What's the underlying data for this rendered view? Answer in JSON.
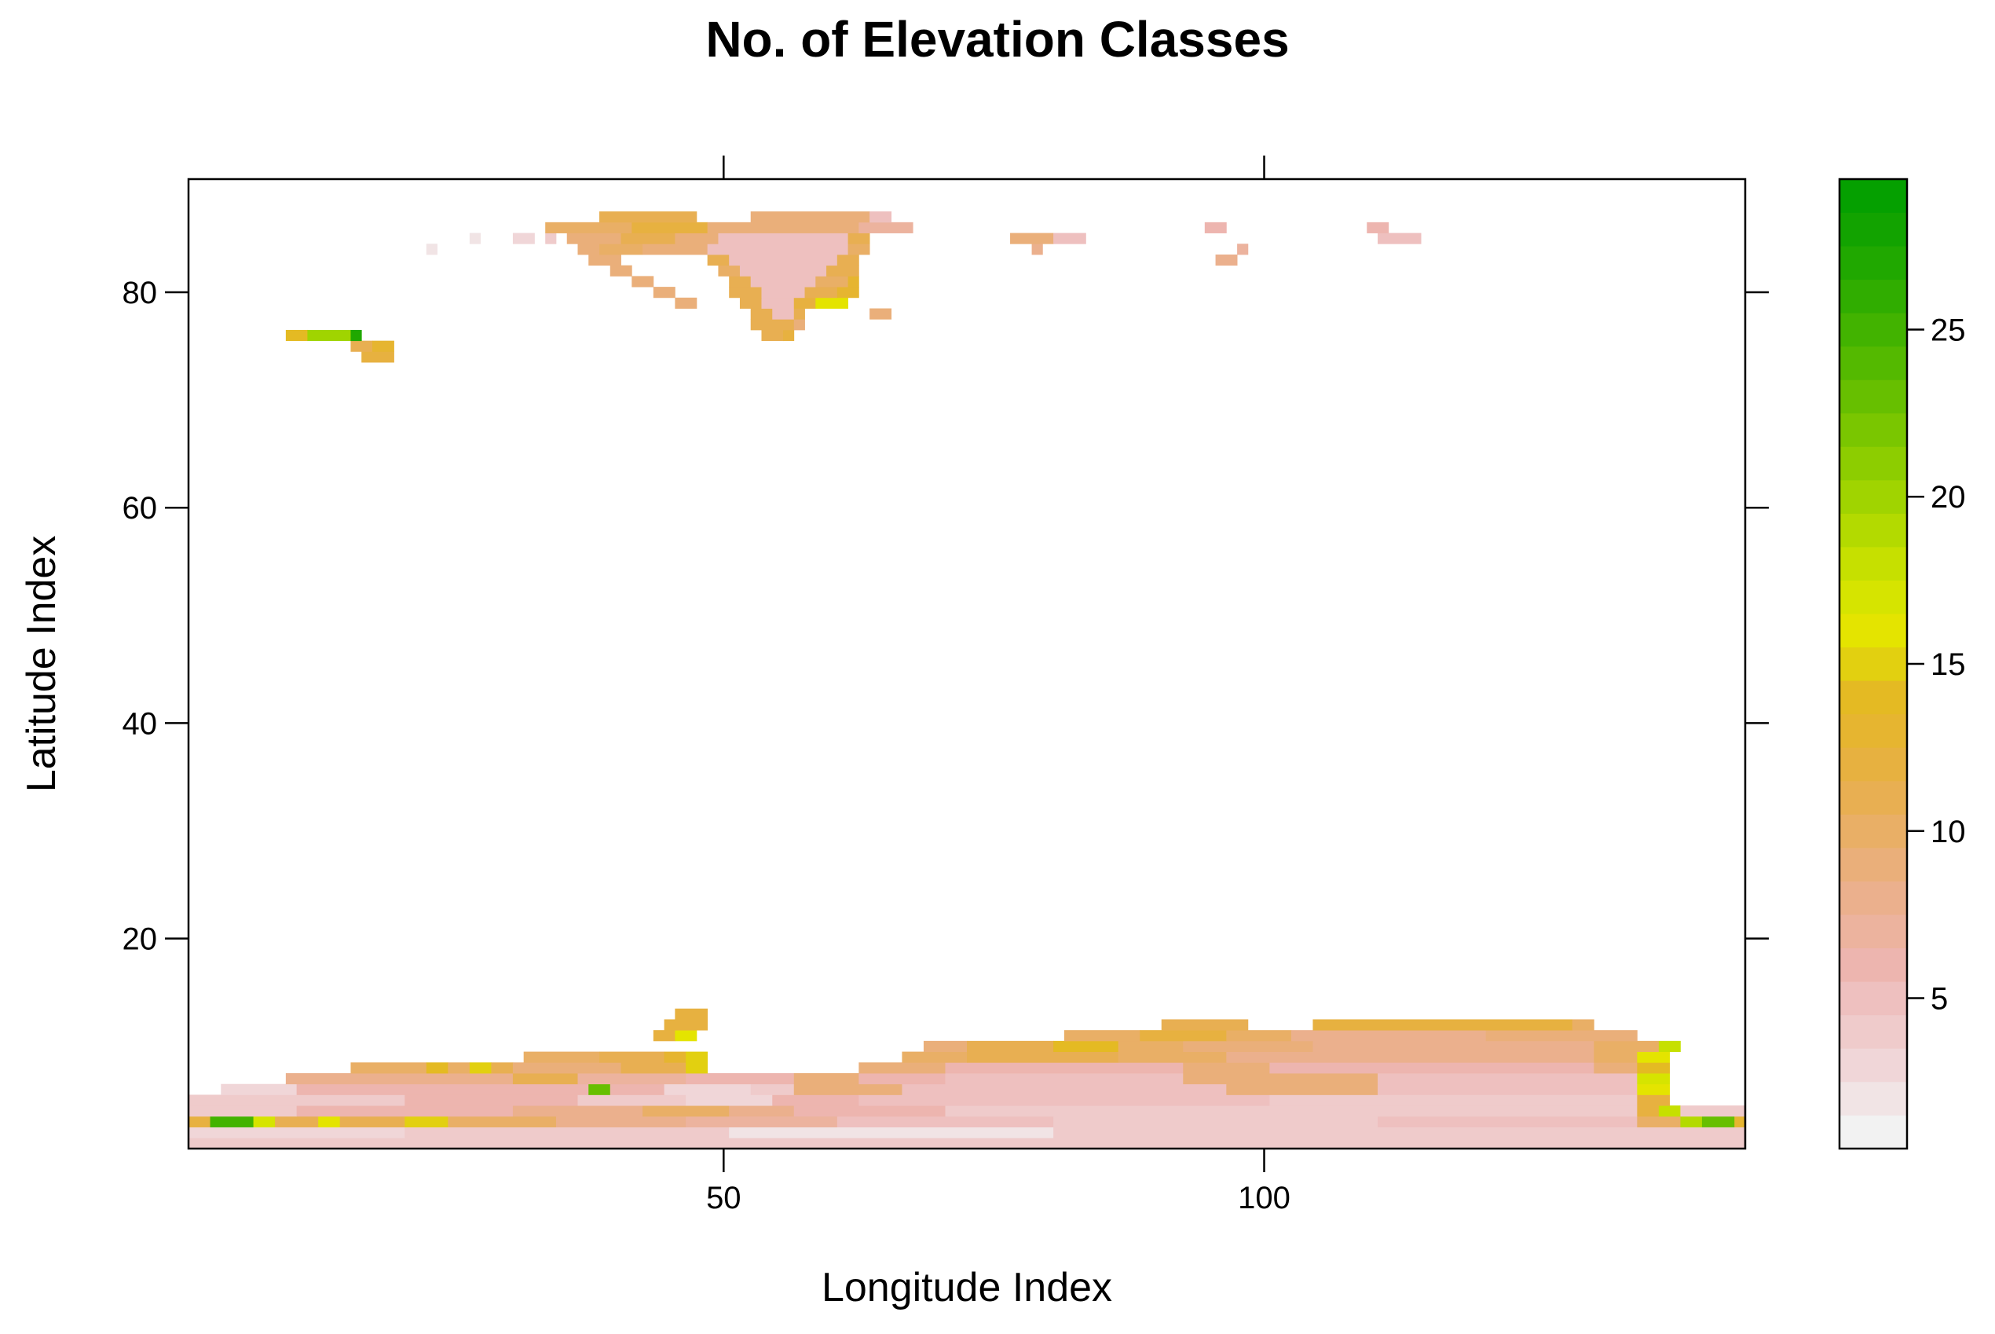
{
  "chart_data": {
    "type": "heatmap",
    "title": "No. of Elevation Classes",
    "xlabel": "Longitude Index",
    "ylabel": "Latitude Index",
    "xlim": [
      0.5,
      144.5
    ],
    "ylim": [
      0.5,
      90.5
    ],
    "xticks": [
      50,
      100
    ],
    "yticks": [
      20,
      40,
      60,
      80
    ],
    "colorbar": {
      "min": 0.5,
      "max": 29.5,
      "ticks": [
        5,
        10,
        15,
        20,
        25
      ],
      "colors": [
        "#F2F2F2",
        "#F1E4E5",
        "#F0D6D8",
        "#EFCBCB",
        "#EEC0BF",
        "#EDB5AF",
        "#ECB39E",
        "#EBB08D",
        "#EAAF7A",
        "#E9AF66",
        "#E8AF52",
        "#E7B140",
        "#E6B530",
        "#E4BA23",
        "#E2D010",
        "#E4E400",
        "#D6E400",
        "#C6E000",
        "#B3DA00",
        "#A0D400",
        "#8DCD00",
        "#7AC600",
        "#67BF00",
        "#54B900",
        "#42B300",
        "#30AD00",
        "#20A800",
        "#12A300",
        "#05A000"
      ]
    },
    "grid": false,
    "legend": "colorbar-right",
    "rows": [
      {
        "y": 1,
        "segments": [
          [
            1,
            144,
            4
          ]
        ]
      },
      {
        "y": 2,
        "segments": [
          [
            1,
            20,
            3
          ],
          [
            21,
            50,
            4
          ],
          [
            51,
            80,
            2
          ],
          [
            81,
            110,
            4
          ],
          [
            111,
            144,
            4
          ]
        ]
      },
      {
        "y": 3,
        "segments": [
          [
            1,
            2,
            12
          ],
          [
            3,
            6,
            25
          ],
          [
            7,
            8,
            17
          ],
          [
            9,
            12,
            11
          ],
          [
            13,
            14,
            16
          ],
          [
            15,
            20,
            11
          ],
          [
            21,
            24,
            15
          ],
          [
            25,
            34,
            10
          ],
          [
            35,
            46,
            8
          ],
          [
            47,
            60,
            7
          ],
          [
            61,
            80,
            5
          ],
          [
            81,
            110,
            4
          ],
          [
            111,
            134,
            5
          ],
          [
            135,
            138,
            10
          ],
          [
            139,
            140,
            19
          ],
          [
            141,
            143,
            23
          ],
          [
            144,
            144,
            13
          ]
        ]
      },
      {
        "y": 4,
        "segments": [
          [
            1,
            10,
            4
          ],
          [
            11,
            30,
            6
          ],
          [
            31,
            42,
            8
          ],
          [
            43,
            50,
            10
          ],
          [
            51,
            56,
            8
          ],
          [
            57,
            70,
            6
          ],
          [
            71,
            134,
            4
          ],
          [
            135,
            136,
            12
          ],
          [
            137,
            138,
            18
          ],
          [
            139,
            144,
            4
          ]
        ]
      },
      {
        "y": 5,
        "segments": [
          [
            1,
            20,
            4
          ],
          [
            21,
            36,
            6
          ],
          [
            37,
            46,
            4
          ],
          [
            47,
            54,
            3
          ],
          [
            55,
            62,
            6
          ],
          [
            63,
            100,
            5
          ],
          [
            101,
            134,
            4
          ],
          [
            135,
            137,
            12
          ]
        ]
      },
      {
        "y": 6,
        "segments": [
          [
            4,
            10,
            3
          ],
          [
            11,
            30,
            6
          ],
          [
            31,
            37,
            6
          ],
          [
            38,
            39,
            23
          ],
          [
            40,
            44,
            6
          ],
          [
            45,
            52,
            3
          ],
          [
            53,
            56,
            4
          ],
          [
            57,
            66,
            9
          ],
          [
            67,
            96,
            5
          ],
          [
            97,
            110,
            9
          ],
          [
            111,
            134,
            5
          ],
          [
            135,
            137,
            16
          ]
        ]
      },
      {
        "y": 7,
        "segments": [
          [
            10,
            30,
            8
          ],
          [
            31,
            36,
            11
          ],
          [
            37,
            46,
            7
          ],
          [
            47,
            56,
            6
          ],
          [
            57,
            62,
            9
          ],
          [
            63,
            70,
            6
          ],
          [
            71,
            92,
            5
          ],
          [
            93,
            110,
            9
          ],
          [
            111,
            134,
            5
          ],
          [
            135,
            137,
            17
          ]
        ]
      },
      {
        "y": 8,
        "segments": [
          [
            16,
            22,
            10
          ],
          [
            23,
            24,
            14
          ],
          [
            25,
            26,
            10
          ],
          [
            27,
            28,
            15
          ],
          [
            29,
            30,
            11
          ],
          [
            31,
            40,
            9
          ],
          [
            41,
            46,
            11
          ],
          [
            47,
            48,
            15
          ],
          [
            63,
            70,
            9
          ],
          [
            71,
            92,
            6
          ],
          [
            93,
            100,
            9
          ],
          [
            101,
            130,
            6
          ],
          [
            131,
            134,
            9
          ],
          [
            135,
            137,
            14
          ]
        ]
      },
      {
        "y": 9,
        "segments": [
          [
            32,
            38,
            10
          ],
          [
            39,
            44,
            11
          ],
          [
            45,
            46,
            13
          ],
          [
            47,
            48,
            15
          ],
          [
            67,
            72,
            10
          ],
          [
            73,
            86,
            11
          ],
          [
            87,
            96,
            10
          ],
          [
            97,
            130,
            8
          ],
          [
            131,
            134,
            10
          ],
          [
            135,
            137,
            16
          ]
        ]
      },
      {
        "y": 10,
        "segments": [
          [
            69,
            72,
            9
          ],
          [
            73,
            80,
            11
          ],
          [
            81,
            86,
            14
          ],
          [
            87,
            92,
            10
          ],
          [
            93,
            104,
            9
          ],
          [
            105,
            130,
            8
          ],
          [
            131,
            136,
            10
          ],
          [
            137,
            138,
            18
          ]
        ]
      },
      {
        "y": 11,
        "segments": [
          [
            44,
            45,
            12
          ],
          [
            46,
            47,
            16
          ],
          [
            82,
            88,
            10
          ],
          [
            89,
            96,
            12
          ],
          [
            97,
            102,
            10
          ],
          [
            103,
            120,
            8
          ],
          [
            121,
            134,
            9
          ]
        ]
      },
      {
        "y": 12,
        "segments": [
          [
            45,
            48,
            12
          ],
          [
            91,
            98,
            11
          ],
          [
            105,
            128,
            12
          ],
          [
            129,
            130,
            10
          ]
        ]
      },
      {
        "y": 13,
        "segments": [
          [
            46,
            48,
            12
          ]
        ]
      },
      {
        "y": 74,
        "segments": [
          [
            17,
            19,
            12
          ]
        ]
      },
      {
        "y": 75,
        "segments": [
          [
            16,
            17,
            11
          ],
          [
            18,
            19,
            13
          ]
        ]
      },
      {
        "y": 76,
        "segments": [
          [
            10,
            11,
            14
          ],
          [
            12,
            15,
            20
          ],
          [
            16,
            16,
            27
          ],
          [
            54,
            55,
            11
          ],
          [
            56,
            56,
            12
          ]
        ]
      },
      {
        "y": 77,
        "segments": [
          [
            53,
            56,
            11
          ],
          [
            57,
            57,
            9
          ]
        ]
      },
      {
        "y": 78,
        "segments": [
          [
            53,
            54,
            11
          ],
          [
            55,
            56,
            5
          ],
          [
            57,
            57,
            11
          ],
          [
            64,
            65,
            9
          ]
        ]
      },
      {
        "y": 79,
        "segments": [
          [
            46,
            47,
            9
          ],
          [
            52,
            53,
            11
          ],
          [
            54,
            56,
            5
          ],
          [
            57,
            58,
            12
          ],
          [
            59,
            61,
            16
          ]
        ]
      },
      {
        "y": 80,
        "segments": [
          [
            44,
            45,
            9
          ],
          [
            51,
            53,
            11
          ],
          [
            54,
            57,
            5
          ],
          [
            58,
            60,
            11
          ],
          [
            61,
            62,
            13
          ]
        ]
      },
      {
        "y": 81,
        "segments": [
          [
            42,
            43,
            9
          ],
          [
            51,
            52,
            11
          ],
          [
            53,
            58,
            5
          ],
          [
            59,
            61,
            10
          ],
          [
            62,
            62,
            13
          ]
        ]
      },
      {
        "y": 82,
        "segments": [
          [
            40,
            41,
            9
          ],
          [
            50,
            51,
            10
          ],
          [
            52,
            59,
            5
          ],
          [
            60,
            62,
            11
          ]
        ]
      },
      {
        "y": 83,
        "segments": [
          [
            38,
            40,
            9
          ],
          [
            49,
            50,
            11
          ],
          [
            51,
            60,
            5
          ],
          [
            61,
            62,
            11
          ],
          [
            96,
            97,
            8
          ]
        ]
      },
      {
        "y": 84,
        "segments": [
          [
            23,
            23,
            2
          ],
          [
            37,
            38,
            9
          ],
          [
            39,
            42,
            10
          ],
          [
            43,
            48,
            9
          ],
          [
            49,
            61,
            5
          ],
          [
            62,
            63,
            10
          ],
          [
            79,
            79,
            8
          ],
          [
            98,
            98,
            7
          ]
        ]
      },
      {
        "y": 85,
        "segments": [
          [
            27,
            27,
            2
          ],
          [
            31,
            32,
            3
          ],
          [
            34,
            34,
            4
          ],
          [
            36,
            40,
            9
          ],
          [
            41,
            45,
            11
          ],
          [
            46,
            49,
            9
          ],
          [
            50,
            61,
            5
          ],
          [
            62,
            63,
            11
          ],
          [
            77,
            80,
            9
          ],
          [
            81,
            83,
            5
          ],
          [
            111,
            114,
            5
          ]
        ]
      },
      {
        "y": 86,
        "segments": [
          [
            34,
            41,
            10
          ],
          [
            42,
            48,
            12
          ],
          [
            49,
            62,
            9
          ],
          [
            63,
            67,
            7
          ],
          [
            95,
            96,
            6
          ],
          [
            110,
            111,
            6
          ]
        ]
      },
      {
        "y": 87,
        "segments": [
          [
            39,
            47,
            11
          ],
          [
            53,
            63,
            9
          ],
          [
            64,
            65,
            5
          ]
        ]
      }
    ]
  }
}
